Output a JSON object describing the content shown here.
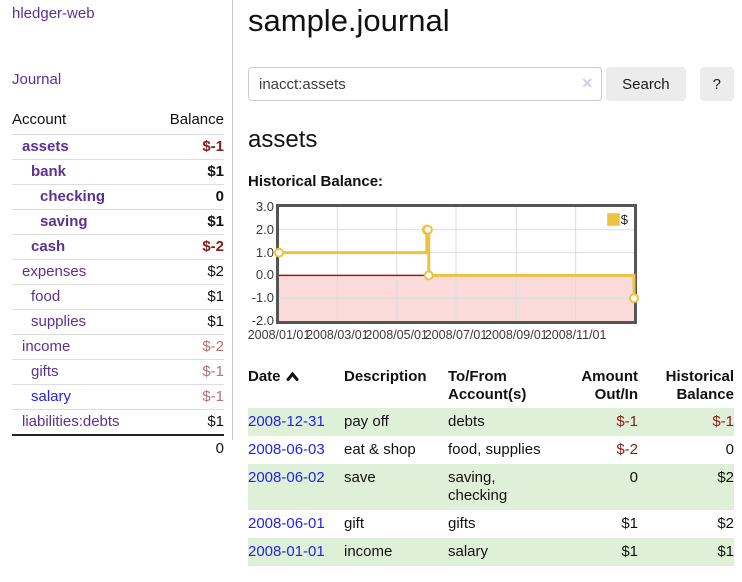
{
  "sidebar": {
    "app_title": "hledger-web",
    "journal_link": "Journal",
    "accounts_header": "Account",
    "balance_header": "Balance",
    "accounts": [
      {
        "name": "assets",
        "indent": 1,
        "bold": true,
        "balance": "$-1",
        "balance_class": "neg-strong"
      },
      {
        "name": "bank",
        "indent": 2,
        "bold": true,
        "balance": "$1",
        "balance_class": ""
      },
      {
        "name": "checking",
        "indent": 3,
        "bold": true,
        "balance": "0",
        "balance_class": ""
      },
      {
        "name": "saving",
        "indent": 3,
        "bold": true,
        "balance": "$1",
        "balance_class": ""
      },
      {
        "name": "cash",
        "indent": 2,
        "bold": true,
        "balance": "$-2",
        "balance_class": "neg-strong"
      },
      {
        "name": "expenses",
        "indent": 1,
        "bold": false,
        "balance": "$2",
        "balance_class": ""
      },
      {
        "name": "food",
        "indent": 2,
        "bold": false,
        "balance": "$1",
        "balance_class": ""
      },
      {
        "name": "supplies",
        "indent": 2,
        "bold": false,
        "balance": "$1",
        "balance_class": ""
      },
      {
        "name": "income",
        "indent": 1,
        "bold": false,
        "balance": "$-2",
        "balance_class": "neg-soft"
      },
      {
        "name": "gifts",
        "indent": 2,
        "bold": false,
        "balance": "$-1",
        "balance_class": "neg-soft"
      },
      {
        "name": "salary",
        "indent": 2,
        "bold": false,
        "balance": "$-1",
        "balance_class": "neg-soft",
        "link_blue": true
      },
      {
        "name": "liabilities:debts",
        "indent": 1,
        "bold": false,
        "balance": "$1",
        "balance_class": ""
      }
    ],
    "total": "0"
  },
  "search": {
    "value": "inacct:assets",
    "clear_icon": "✕",
    "button": "Search",
    "help_button": "?"
  },
  "main": {
    "title": "sample.journal",
    "account_heading": "assets",
    "chart_label": "Historical Balance:"
  },
  "chart_data": {
    "type": "line",
    "step": true,
    "title": "Historical Balance:",
    "x_range": [
      "2008-01-01",
      "2008-12-31"
    ],
    "ylim": [
      -2,
      3
    ],
    "y_ticks": [
      {
        "v": 3,
        "label": "3.0"
      },
      {
        "v": 2,
        "label": "2.0"
      },
      {
        "v": 1,
        "label": "1.0"
      },
      {
        "v": 0,
        "label": "0.0"
      },
      {
        "v": -1,
        "label": "-1.0"
      },
      {
        "v": -2,
        "label": "-2.0"
      }
    ],
    "x_ticks": [
      {
        "date": "2008-01-01",
        "label": "2008/01/01"
      },
      {
        "date": "2008-03-01",
        "label": "2008/03/01"
      },
      {
        "date": "2008-05-01",
        "label": "2008/05/01"
      },
      {
        "date": "2008-07-01",
        "label": "2008/07/01"
      },
      {
        "date": "2008-09-01",
        "label": "2008/09/01"
      },
      {
        "date": "2008-11-01",
        "label": "2008/11/01"
      }
    ],
    "series": [
      {
        "name": "$",
        "color": "#edc240",
        "points": [
          {
            "date": "2008-01-01",
            "value": 1
          },
          {
            "date": "2008-06-01",
            "value": 2
          },
          {
            "date": "2008-06-02",
            "value": 2
          },
          {
            "date": "2008-06-03",
            "value": 0
          },
          {
            "date": "2008-12-31",
            "value": -1
          }
        ]
      }
    ],
    "legend": {
      "position": "top-right",
      "label": "$"
    },
    "grid": true,
    "grid_color": "#dedede",
    "negative_fill": "#fbdada",
    "zero_line_color": "#a01818",
    "plot_border_color": "#555555"
  },
  "register": {
    "headers": [
      {
        "label": "Date",
        "sort_icon": "chevron-up"
      },
      {
        "label": "Description"
      },
      {
        "label": "To/From Account(s)"
      },
      {
        "label": "Amount Out/In",
        "align": "right"
      },
      {
        "label": "Historical Balance",
        "align": "right"
      }
    ],
    "rows": [
      {
        "date": "2008-12-31",
        "description": "pay off",
        "accounts": "debts",
        "amount": "$-1",
        "amount_negative": true,
        "balance": "$-1",
        "balance_negative": true,
        "striped": true
      },
      {
        "date": "2008-06-03",
        "description": "eat & shop",
        "accounts": "food, supplies",
        "amount": "$-2",
        "amount_negative": true,
        "balance": "0",
        "balance_negative": false,
        "striped": false
      },
      {
        "date": "2008-06-02",
        "description": "save",
        "accounts": "saving, checking",
        "amount": "0",
        "amount_negative": false,
        "balance": "$2",
        "balance_negative": false,
        "striped": true
      },
      {
        "date": "2008-06-01",
        "description": "gift",
        "accounts": "gifts",
        "amount": "$1",
        "amount_negative": false,
        "balance": "$2",
        "balance_negative": false,
        "striped": false
      },
      {
        "date": "2008-01-01",
        "description": "income",
        "accounts": "salary",
        "amount": "$1",
        "amount_negative": false,
        "balance": "$1",
        "balance_negative": false,
        "striped": true
      }
    ]
  }
}
